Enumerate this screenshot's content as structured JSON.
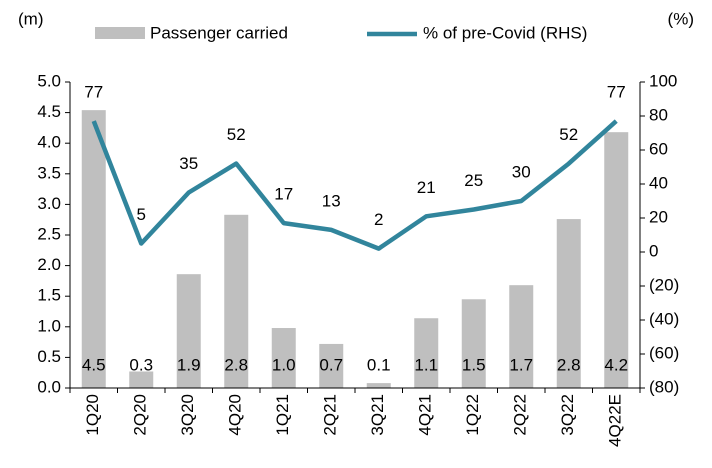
{
  "chart_data": {
    "type": "bar_line",
    "ylabel": "(m)",
    "y2label": "(%)",
    "categories": [
      "1Q20",
      "2Q20",
      "3Q20",
      "4Q20",
      "1Q21",
      "2Q21",
      "3Q21",
      "4Q21",
      "1Q22",
      "2Q22",
      "3Q22",
      "4Q22E"
    ],
    "series": [
      {
        "name": "Passenger carried",
        "color": "#bfbfbf",
        "kind": "bar",
        "values": [
          4.54,
          0.27,
          1.86,
          2.83,
          0.98,
          0.72,
          0.08,
          1.14,
          1.45,
          1.68,
          2.76,
          4.18
        ],
        "value_labels": [
          "4.5",
          "0.3",
          "1.9",
          "2.8",
          "1.0",
          "0.7",
          "0.1",
          "1.1",
          "1.5",
          "1.7",
          "2.8",
          "4.2"
        ]
      },
      {
        "name": "% of pre-Covid (RHS)",
        "color": "#31859c",
        "kind": "line",
        "axis": "y2",
        "values": [
          77,
          5,
          35,
          52,
          17,
          13,
          2,
          21,
          25,
          30,
          52,
          77
        ]
      }
    ],
    "ylim": [
      0,
      5
    ],
    "yticks": [
      {
        "value": 0,
        "label": "0.0"
      },
      {
        "value": 0.5,
        "label": "0.5"
      },
      {
        "value": 1,
        "label": "1.0"
      },
      {
        "value": 1.5,
        "label": "1.5"
      },
      {
        "value": 2,
        "label": "2.0"
      },
      {
        "value": 2.5,
        "label": "2.5"
      },
      {
        "value": 3,
        "label": "3.0"
      },
      {
        "value": 3.5,
        "label": "3.5"
      },
      {
        "value": 4,
        "label": "4.0"
      },
      {
        "value": 4.5,
        "label": "4.5"
      },
      {
        "value": 5,
        "label": "5.0"
      }
    ],
    "y2lim": [
      -80,
      100
    ],
    "y2ticks": [
      {
        "value": -80,
        "label": "(80)"
      },
      {
        "value": -60,
        "label": "(60)"
      },
      {
        "value": -40,
        "label": "(40)"
      },
      {
        "value": -20,
        "label": "(20)"
      },
      0,
      20,
      40,
      60,
      80,
      100
    ],
    "legend": "top"
  }
}
